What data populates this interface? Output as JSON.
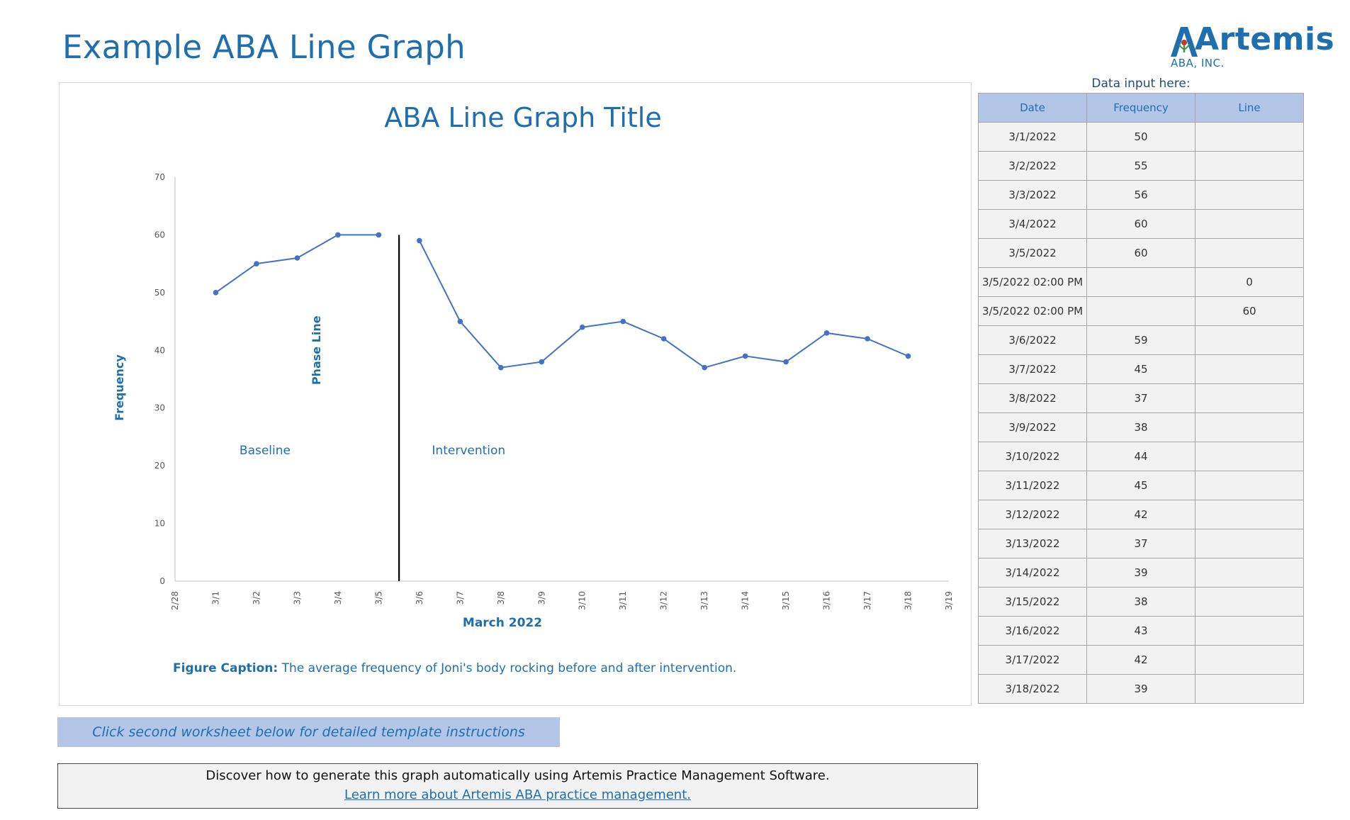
{
  "page": {
    "title": "Example ABA Line Graph",
    "logo": {
      "word": "Artemis",
      "sub": "ABA, INC.",
      "mark": "artemis-logo-icon"
    },
    "data_caption": "Data input here:",
    "instructions": "Click second worksheet below for detailed template instructions",
    "promo_text": "Discover how to generate this graph automatically using Artemis Practice Management Software.",
    "promo_link": "Learn more about Artemis ABA practice management."
  },
  "colors": {
    "accent": "#1f6fae",
    "series": "#4472c4",
    "table_header": "#b4c6e7",
    "table_cell": "#f2f2f2",
    "phase_line": "#000000"
  },
  "table": {
    "headers": [
      "Date",
      "Frequency",
      "Line"
    ],
    "rows": [
      [
        "3/1/2022",
        "50",
        ""
      ],
      [
        "3/2/2022",
        "55",
        ""
      ],
      [
        "3/3/2022",
        "56",
        ""
      ],
      [
        "3/4/2022",
        "60",
        ""
      ],
      [
        "3/5/2022",
        "60",
        ""
      ],
      [
        "3/5/2022 02:00 PM",
        "",
        "0"
      ],
      [
        "3/5/2022 02:00 PM",
        "",
        "60"
      ],
      [
        "3/6/2022",
        "59",
        ""
      ],
      [
        "3/7/2022",
        "45",
        ""
      ],
      [
        "3/8/2022",
        "37",
        ""
      ],
      [
        "3/9/2022",
        "38",
        ""
      ],
      [
        "3/10/2022",
        "44",
        ""
      ],
      [
        "3/11/2022",
        "45",
        ""
      ],
      [
        "3/12/2022",
        "42",
        ""
      ],
      [
        "3/13/2022",
        "37",
        ""
      ],
      [
        "3/14/2022",
        "39",
        ""
      ],
      [
        "3/15/2022",
        "38",
        ""
      ],
      [
        "3/16/2022",
        "43",
        ""
      ],
      [
        "3/17/2022",
        "42",
        ""
      ],
      [
        "3/18/2022",
        "39",
        ""
      ]
    ]
  },
  "chart_data": {
    "type": "line",
    "title": "ABA Line Graph Title",
    "xlabel": "March 2022",
    "ylabel": "Frequency",
    "ylim": [
      0,
      70
    ],
    "yticks": [
      0,
      10,
      20,
      30,
      40,
      50,
      60,
      70
    ],
    "xticks": [
      "2/28",
      "3/1",
      "3/2",
      "3/3",
      "3/4",
      "3/5",
      "3/6",
      "3/7",
      "3/8",
      "3/9",
      "3/10",
      "3/11",
      "3/12",
      "3/13",
      "3/14",
      "3/15",
      "3/16",
      "3/17",
      "3/18",
      "3/19"
    ],
    "grid": false,
    "legend": "none",
    "series": [
      {
        "name": "",
        "segments": [
          {
            "x": [
              "3/1",
              "3/2",
              "3/3",
              "3/4",
              "3/5"
            ],
            "values": [
              50,
              55,
              56,
              60,
              60
            ]
          },
          {
            "x": [
              "3/6",
              "3/7",
              "3/8",
              "3/9",
              "3/10",
              "3/11",
              "3/12",
              "3/13",
              "3/14",
              "3/15",
              "3/16",
              "3/17",
              "3/18"
            ],
            "values": [
              59,
              45,
              37,
              38,
              44,
              45,
              42,
              37,
              39,
              38,
              43,
              42,
              39
            ]
          }
        ]
      }
    ],
    "phase_line": {
      "x": "3/5/2022 02:00 PM",
      "from": 0,
      "to": 60,
      "label": "Phase Line"
    },
    "annotations": [
      {
        "text": "Baseline",
        "near": "3/2",
        "y": 22
      },
      {
        "text": "Intervention",
        "near": "3/7",
        "y": 22
      }
    ],
    "caption": {
      "bold": "Figure Caption:",
      "text": " The average frequency of Joni's body rocking before and after intervention."
    }
  }
}
